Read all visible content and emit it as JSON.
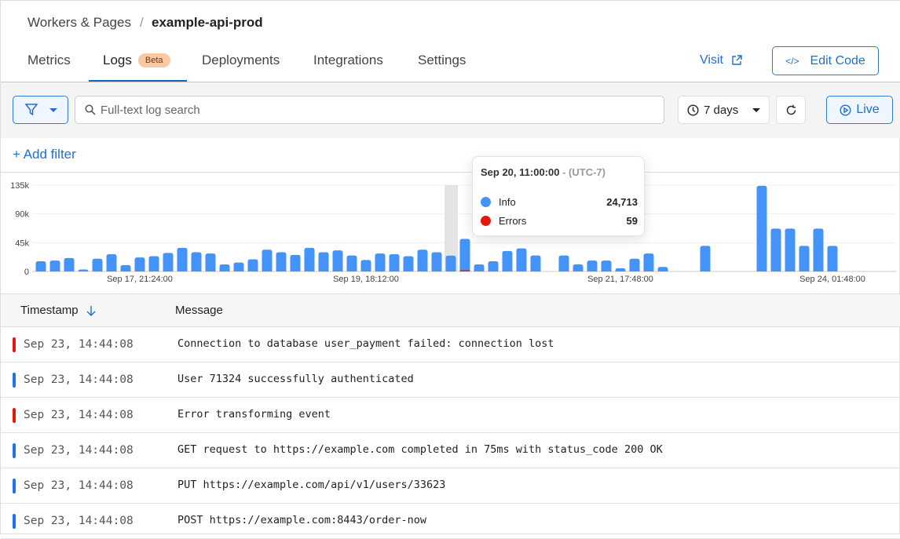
{
  "breadcrumb": {
    "parent": "Workers & Pages",
    "separator": "/",
    "current": "example-api-prod"
  },
  "tabs": [
    {
      "label": "Metrics"
    },
    {
      "label": "Logs",
      "badge": "Beta",
      "active": true
    },
    {
      "label": "Deployments"
    },
    {
      "label": "Integrations"
    },
    {
      "label": "Settings"
    }
  ],
  "header_actions": {
    "visit": "Visit",
    "edit_code": "Edit Code"
  },
  "toolbar": {
    "search_placeholder": "Full-text log search",
    "time_range": "7 days",
    "live": "Live"
  },
  "add_filter": "+ Add filter",
  "colors": {
    "accent": "#1f6fd1",
    "info": "#4493f8",
    "error": "#e01b0e"
  },
  "chart_data": {
    "type": "bar",
    "ylim": [
      0,
      135000
    ],
    "y_ticks": [
      "0",
      "45k",
      "90k",
      "135k"
    ],
    "x_ticks": [
      {
        "label": "Sep 17, 21:24:00",
        "index": 7
      },
      {
        "label": "Sep 19, 18:12:00",
        "index": 23
      },
      {
        "label": "Sep 21, 17:48:00",
        "index": 41
      },
      {
        "label": "Sep 24, 01:48:00",
        "index": 56
      }
    ],
    "info": [
      16000,
      17000,
      21000,
      3000,
      20000,
      27000,
      10000,
      22000,
      24000,
      29000,
      37000,
      30000,
      28000,
      11000,
      14000,
      19000,
      34000,
      30000,
      26000,
      37000,
      30000,
      33000,
      25000,
      18000,
      28000,
      27000,
      24000,
      34000,
      30000,
      24713,
      51000,
      11000,
      16000,
      32000,
      36000,
      25000,
      0,
      25000,
      11000,
      17000,
      17000,
      5000,
      20000,
      28000,
      7000,
      0,
      0,
      40000,
      0,
      0,
      0,
      134000,
      67000,
      67000,
      40000,
      67000,
      40000,
      0,
      0,
      0,
      0
    ],
    "highlight_index": 29,
    "grid": true
  },
  "tooltip": {
    "time": "Sep 20, 11:00:00",
    "tz": "- (UTC-7)",
    "rows": [
      {
        "label": "Info",
        "value": "24,713"
      },
      {
        "label": "Errors",
        "value": "59"
      }
    ]
  },
  "table": {
    "columns": [
      "Timestamp",
      "Message"
    ],
    "rows": [
      {
        "level": "error",
        "timestamp": "Sep 23, 14:44:08",
        "message": "Connection to database user_payment failed: connection lost"
      },
      {
        "level": "info",
        "timestamp": "Sep 23, 14:44:08",
        "message": "User 71324 successfully authenticated"
      },
      {
        "level": "error",
        "timestamp": "Sep 23, 14:44:08",
        "message": "Error transforming event"
      },
      {
        "level": "info",
        "timestamp": "Sep 23, 14:44:08",
        "message": "GET request to https://example.com completed in 75ms with status_code 200 OK"
      },
      {
        "level": "info",
        "timestamp": "Sep 23, 14:44:08",
        "message": "PUT https://example.com/api/v1/users/33623"
      },
      {
        "level": "info",
        "timestamp": "Sep 23, 14:44:08",
        "message": "POST https://example.com:8443/order-now"
      }
    ]
  }
}
